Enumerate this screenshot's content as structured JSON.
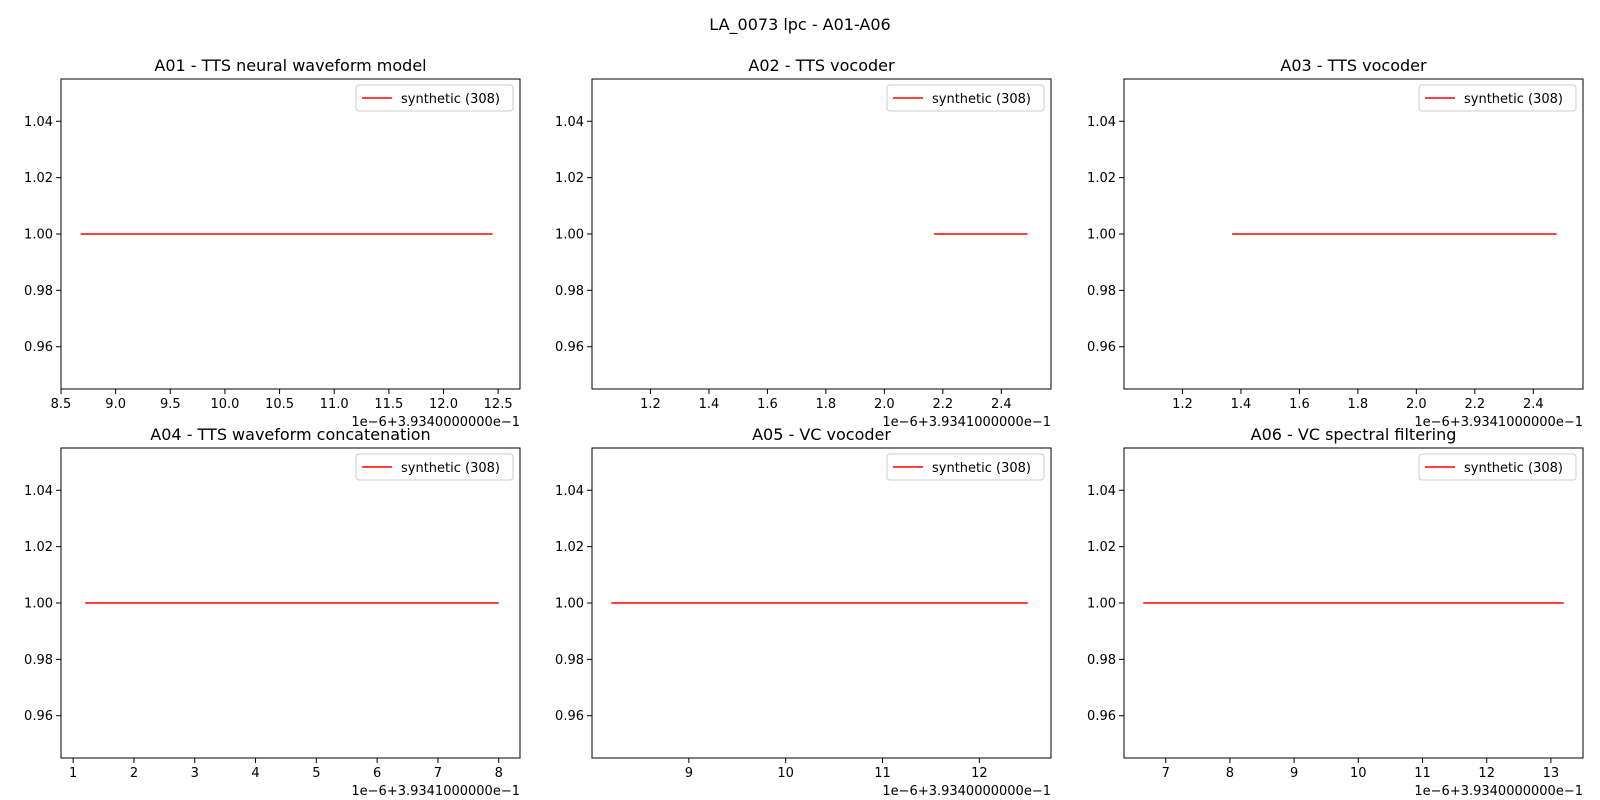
{
  "figure": {
    "suptitle": "LA_0073 lpc - A01-A06"
  },
  "chart_data": [
    {
      "type": "line",
      "title": "A01 - TTS neural waveform model",
      "xlabel": "",
      "ylabel": "",
      "offset_label": "1e−6+3.9340000000e−1",
      "xlim": [
        8.5,
        12.7
      ],
      "xticks": [
        "8.5",
        "9.0",
        "9.5",
        "10.0",
        "10.5",
        "11.0",
        "11.5",
        "12.0",
        "12.5"
      ],
      "ylim": [
        0.945,
        1.055
      ],
      "yticks": [
        "0.96",
        "0.98",
        "1.00",
        "1.02",
        "1.04"
      ],
      "legend_position": "upper-right",
      "grid": false,
      "series": [
        {
          "name": "synthetic (308)",
          "color": "#ff0000",
          "x": [
            8.68,
            12.45
          ],
          "y": [
            1.0,
            1.0
          ]
        }
      ]
    },
    {
      "type": "line",
      "title": "A02 - TTS vocoder",
      "xlabel": "",
      "ylabel": "",
      "offset_label": "1e−6+3.9341000000e−1",
      "xlim": [
        1.0,
        2.57
      ],
      "xticks": [
        "1.2",
        "1.4",
        "1.6",
        "1.8",
        "2.0",
        "2.2",
        "2.4"
      ],
      "ylim": [
        0.945,
        1.055
      ],
      "yticks": [
        "0.96",
        "0.98",
        "1.00",
        "1.02",
        "1.04"
      ],
      "legend_position": "upper-right",
      "grid": false,
      "series": [
        {
          "name": "synthetic (308)",
          "color": "#ff0000",
          "x": [
            2.17,
            2.49
          ],
          "y": [
            1.0,
            1.0
          ]
        }
      ]
    },
    {
      "type": "line",
      "title": "A03 - TTS vocoder",
      "xlabel": "",
      "ylabel": "",
      "offset_label": "1e−6+3.9341000000e−1",
      "xlim": [
        1.0,
        2.57
      ],
      "xticks": [
        "1.2",
        "1.4",
        "1.6",
        "1.8",
        "2.0",
        "2.2",
        "2.4"
      ],
      "ylim": [
        0.945,
        1.055
      ],
      "yticks": [
        "0.96",
        "0.98",
        "1.00",
        "1.02",
        "1.04"
      ],
      "legend_position": "upper-right",
      "grid": false,
      "series": [
        {
          "name": "synthetic (308)",
          "color": "#ff0000",
          "x": [
            1.37,
            2.48
          ],
          "y": [
            1.0,
            1.0
          ]
        }
      ]
    },
    {
      "type": "line",
      "title": "A04 - TTS waveform concatenation",
      "xlabel": "",
      "ylabel": "",
      "offset_label": "1e−6+3.9341000000e−1",
      "xlim": [
        0.8,
        8.35
      ],
      "xticks": [
        "1",
        "2",
        "3",
        "4",
        "5",
        "6",
        "7",
        "8"
      ],
      "ylim": [
        0.945,
        1.055
      ],
      "yticks": [
        "0.96",
        "0.98",
        "1.00",
        "1.02",
        "1.04"
      ],
      "legend_position": "upper-right",
      "grid": false,
      "series": [
        {
          "name": "synthetic (308)",
          "color": "#ff0000",
          "x": [
            1.2,
            8.0
          ],
          "y": [
            1.0,
            1.0
          ]
        }
      ]
    },
    {
      "type": "line",
      "title": "A05 - VC vocoder",
      "xlabel": "",
      "ylabel": "",
      "offset_label": "1e−6+3.9340000000e−1",
      "xlim": [
        8.0,
        12.74
      ],
      "xticks": [
        "9",
        "10",
        "11",
        "12"
      ],
      "ylim": [
        0.945,
        1.055
      ],
      "yticks": [
        "0.96",
        "0.98",
        "1.00",
        "1.02",
        "1.04"
      ],
      "legend_position": "upper-right",
      "grid": false,
      "series": [
        {
          "name": "synthetic (308)",
          "color": "#ff0000",
          "x": [
            8.2,
            12.5
          ],
          "y": [
            1.0,
            1.0
          ]
        }
      ]
    },
    {
      "type": "line",
      "title": "A06 - VC spectral filtering",
      "xlabel": "",
      "ylabel": "",
      "offset_label": "1e−6+3.9340000000e−1",
      "xlim": [
        6.35,
        13.5
      ],
      "xticks": [
        "7",
        "8",
        "9",
        "10",
        "11",
        "12",
        "13"
      ],
      "ylim": [
        0.945,
        1.055
      ],
      "yticks": [
        "0.96",
        "0.98",
        "1.00",
        "1.02",
        "1.04"
      ],
      "legend_position": "upper-right",
      "grid": false,
      "series": [
        {
          "name": "synthetic (308)",
          "color": "#ff0000",
          "x": [
            6.65,
            13.2
          ],
          "y": [
            1.0,
            1.0
          ]
        }
      ]
    }
  ]
}
